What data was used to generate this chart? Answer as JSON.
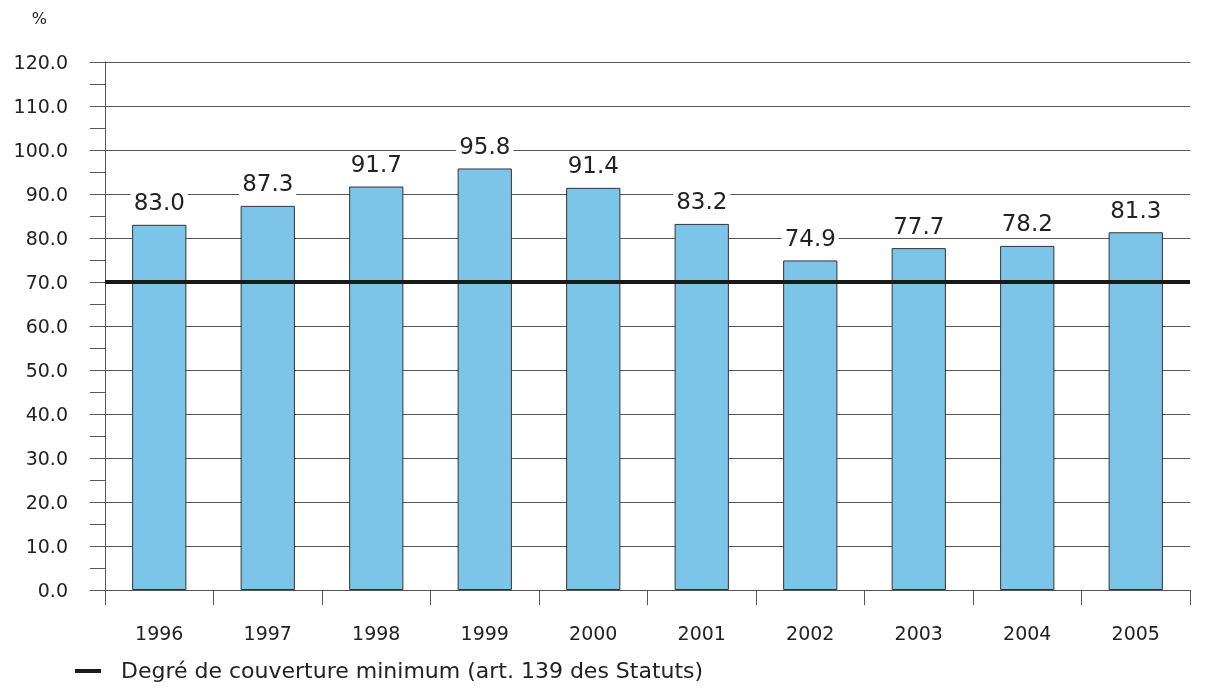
{
  "chart_data": {
    "type": "bar",
    "ylabel": "%",
    "categories": [
      "1996",
      "1997",
      "1998",
      "1999",
      "2000",
      "2001",
      "2002",
      "2003",
      "2004",
      "2005"
    ],
    "values": [
      83.0,
      87.3,
      91.7,
      95.8,
      91.4,
      83.2,
      74.9,
      77.7,
      78.2,
      81.3
    ],
    "value_labels": [
      "83.0",
      "87.3",
      "91.7",
      "95.8",
      "91.4",
      "83.2",
      "74.9",
      "77.7",
      "78.2",
      "81.3"
    ],
    "color": "#7cc4e8",
    "ylim": [
      0,
      120
    ],
    "yticks": [
      {
        "value": 0,
        "label": "0.0"
      },
      {
        "value": 5,
        "label": null
      },
      {
        "value": 10,
        "label": "10.0"
      },
      {
        "value": 15,
        "label": null
      },
      {
        "value": 20,
        "label": "20.0"
      },
      {
        "value": 25,
        "label": null
      },
      {
        "value": 30,
        "label": "30.0"
      },
      {
        "value": 35,
        "label": null
      },
      {
        "value": 40,
        "label": "40.0"
      },
      {
        "value": 45,
        "label": null
      },
      {
        "value": 50,
        "label": "50.0"
      },
      {
        "value": 55,
        "label": null
      },
      {
        "value": 60,
        "label": "60.0"
      },
      {
        "value": 65,
        "label": null
      },
      {
        "value": 70,
        "label": "70.0"
      },
      {
        "value": 75,
        "label": null
      },
      {
        "value": 80,
        "label": "80.0"
      },
      {
        "value": 85,
        "label": null
      },
      {
        "value": 90,
        "label": "90.0"
      },
      {
        "value": 95,
        "label": null
      },
      {
        "value": 100,
        "label": "100.0"
      },
      {
        "value": 105,
        "label": null
      },
      {
        "value": 110,
        "label": "110.0"
      },
      {
        "value": 115,
        "label": null
      },
      {
        "value": 120,
        "label": "120.0"
      }
    ],
    "grid": "y",
    "legend": "bottom left",
    "ref_lines": [
      {
        "axis": "y",
        "value": 70,
        "label": "Degré de couverture minimum (art. 139 des Statuts)",
        "color": "#1a1a1a"
      }
    ]
  }
}
